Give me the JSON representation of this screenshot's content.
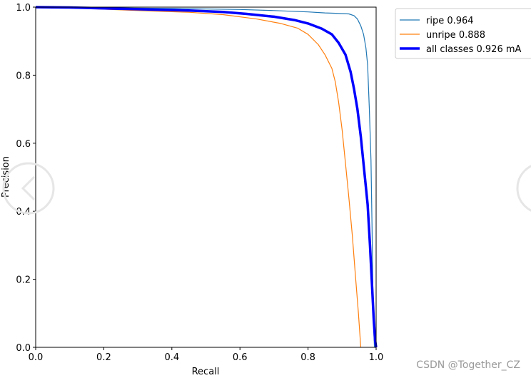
{
  "chart_data": {
    "type": "line",
    "title": "",
    "xlabel": "Recall",
    "ylabel": "Precision",
    "xlim": [
      0,
      1
    ],
    "ylim": [
      0,
      1
    ],
    "xticks": [
      "0.0",
      "0.2",
      "0.4",
      "0.6",
      "0.8",
      "1.0"
    ],
    "yticks": [
      "0.0",
      "0.2",
      "0.4",
      "0.6",
      "0.8",
      "1.0"
    ],
    "grid": false,
    "legend_position": "outside-top-right",
    "series": [
      {
        "name": "ripe 0.964",
        "color": "#1f77b4",
        "width": "thin",
        "points": [
          [
            0,
            1.0
          ],
          [
            0.05,
            0.999
          ],
          [
            0.2,
            0.998
          ],
          [
            0.4,
            0.996
          ],
          [
            0.6,
            0.993
          ],
          [
            0.7,
            0.99
          ],
          [
            0.8,
            0.986
          ],
          [
            0.85,
            0.983
          ],
          [
            0.88,
            0.982
          ],
          [
            0.9,
            0.981
          ],
          [
            0.92,
            0.98
          ],
          [
            0.935,
            0.975
          ],
          [
            0.945,
            0.965
          ],
          [
            0.955,
            0.945
          ],
          [
            0.963,
            0.92
          ],
          [
            0.97,
            0.88
          ],
          [
            0.975,
            0.83
          ],
          [
            0.98,
            0.7
          ],
          [
            0.985,
            0.55
          ],
          [
            0.988,
            0.35
          ],
          [
            0.99,
            0.2
          ],
          [
            0.993,
            0.05
          ],
          [
            0.995,
            0.0
          ]
        ]
      },
      {
        "name": "unripe 0.888",
        "color": "#ff7f0e",
        "width": "thin",
        "points": [
          [
            0,
            1.0
          ],
          [
            0.1,
            0.998
          ],
          [
            0.3,
            0.99
          ],
          [
            0.45,
            0.985
          ],
          [
            0.55,
            0.978
          ],
          [
            0.65,
            0.965
          ],
          [
            0.72,
            0.952
          ],
          [
            0.77,
            0.938
          ],
          [
            0.8,
            0.92
          ],
          [
            0.83,
            0.89
          ],
          [
            0.85,
            0.86
          ],
          [
            0.87,
            0.82
          ],
          [
            0.88,
            0.78
          ],
          [
            0.89,
            0.72
          ],
          [
            0.9,
            0.64
          ],
          [
            0.91,
            0.54
          ],
          [
            0.92,
            0.44
          ],
          [
            0.93,
            0.33
          ],
          [
            0.94,
            0.2
          ],
          [
            0.948,
            0.1
          ],
          [
            0.955,
            0.0
          ]
        ]
      },
      {
        "name": "all classes 0.926 mA",
        "color": "#0000ff",
        "width": "thick",
        "points": [
          [
            0,
            1.0
          ],
          [
            0.1,
            0.999
          ],
          [
            0.3,
            0.994
          ],
          [
            0.45,
            0.99
          ],
          [
            0.55,
            0.986
          ],
          [
            0.62,
            0.98
          ],
          [
            0.7,
            0.972
          ],
          [
            0.76,
            0.962
          ],
          [
            0.8,
            0.952
          ],
          [
            0.84,
            0.937
          ],
          [
            0.87,
            0.92
          ],
          [
            0.89,
            0.895
          ],
          [
            0.91,
            0.86
          ],
          [
            0.925,
            0.81
          ],
          [
            0.935,
            0.76
          ],
          [
            0.945,
            0.7
          ],
          [
            0.955,
            0.62
          ],
          [
            0.965,
            0.52
          ],
          [
            0.975,
            0.42
          ],
          [
            0.982,
            0.3
          ],
          [
            0.988,
            0.18
          ],
          [
            0.993,
            0.08
          ],
          [
            0.997,
            0.02
          ],
          [
            1.0,
            0.0
          ]
        ]
      }
    ]
  },
  "watermark": "CSDN @Together_CZ"
}
